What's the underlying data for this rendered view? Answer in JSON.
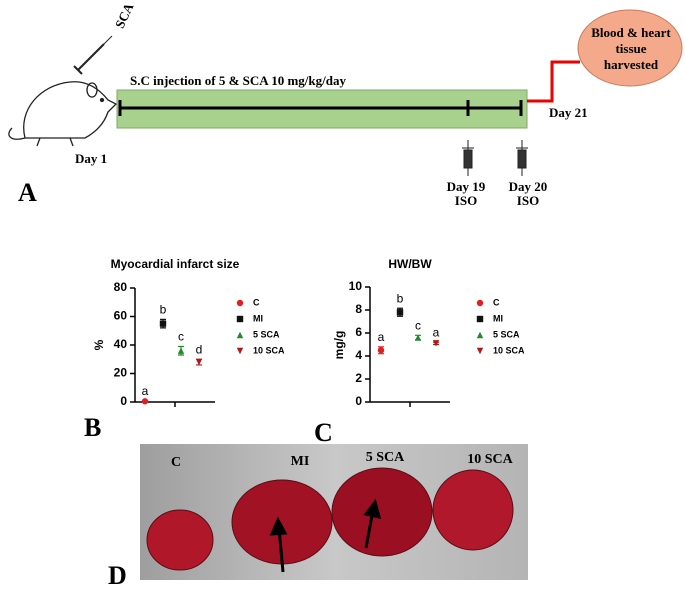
{
  "panels": [
    "A",
    "B",
    "C",
    "D"
  ],
  "timeline": {
    "drug": "SCA",
    "treatment": "S.C injection of 5 & SCA 10 mg/kg/day",
    "start": "Day 1",
    "iso_days": [
      {
        "day": "Day 19",
        "label": "ISO"
      },
      {
        "day": "Day 20",
        "label": "ISO"
      }
    ],
    "end": "Day 21",
    "harvest": "Blood & heart tissue harvested"
  },
  "photo": {
    "labels": [
      "C",
      "MI",
      "5 SCA",
      "10 SCA"
    ]
  },
  "chart_data": [
    {
      "type": "dot",
      "title": "Myocardial infarct size",
      "y_label": "%",
      "ylim": [
        0,
        80
      ],
      "yticks": [
        0,
        20,
        40,
        60,
        80
      ],
      "series": [
        {
          "name": "C",
          "color": "#e02020",
          "marker": "circle",
          "values": [
            0.5
          ],
          "errors": [
            0.3
          ],
          "letter": "a"
        },
        {
          "name": "MI",
          "color": "#111111",
          "marker": "square",
          "values": [
            55
          ],
          "errors": [
            3
          ],
          "letter": "b"
        },
        {
          "name": "5 SCA",
          "color": "#1f8a2a",
          "marker": "triangle-up",
          "values": [
            36
          ],
          "errors": [
            3
          ],
          "letter": "c"
        },
        {
          "name": "10 SCA",
          "color": "#b01818",
          "marker": "triangle-down",
          "values": [
            28
          ],
          "errors": [
            2
          ],
          "letter": "d"
        }
      ]
    },
    {
      "type": "dot",
      "title": "HW/BW",
      "y_label": "mg/g",
      "ylim": [
        0,
        10
      ],
      "yticks": [
        0,
        2,
        4,
        6,
        8,
        10
      ],
      "series": [
        {
          "name": "C",
          "color": "#e02020",
          "marker": "circle",
          "values": [
            4.5
          ],
          "errors": [
            0.3
          ],
          "letter": "a"
        },
        {
          "name": "MI",
          "color": "#111111",
          "marker": "square",
          "values": [
            7.8
          ],
          "errors": [
            0.35
          ],
          "letter": "b"
        },
        {
          "name": "5 SCA",
          "color": "#1f8a2a",
          "marker": "triangle-up",
          "values": [
            5.6
          ],
          "errors": [
            0.2
          ],
          "letter": "c"
        },
        {
          "name": "10 SCA",
          "color": "#b01818",
          "marker": "triangle-down",
          "values": [
            5.1
          ],
          "errors": [
            0.1
          ],
          "letter": "a"
        }
      ]
    }
  ]
}
